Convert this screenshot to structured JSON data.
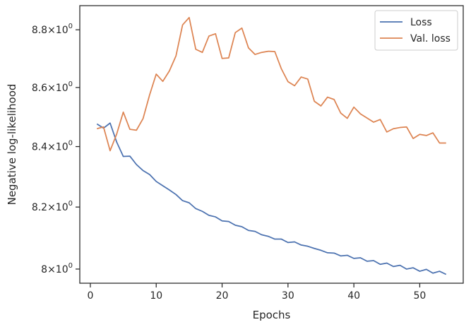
{
  "chart_data": {
    "type": "line",
    "xlabel": "Epochs",
    "ylabel": "Negative log-likelihood",
    "xlim": [
      -1.6,
      56.6
    ],
    "ylim": [
      7.955,
      8.885
    ],
    "yscale": "log",
    "x_ticks": [
      0,
      10,
      20,
      30,
      40,
      50
    ],
    "y_ticks": [
      {
        "value": 8.0,
        "base": "8",
        "exp": "0"
      },
      {
        "value": 8.2,
        "base": "8.2",
        "exp": "0"
      },
      {
        "value": 8.4,
        "base": "8.4",
        "exp": "0"
      },
      {
        "value": 8.6,
        "base": "8.6",
        "exp": "0"
      },
      {
        "value": 8.8,
        "base": "8.8",
        "exp": "0"
      }
    ],
    "tick_multiplier": "×10",
    "grid": false,
    "legend_position": "top-right",
    "x": [
      1,
      2,
      3,
      4,
      5,
      6,
      7,
      8,
      9,
      10,
      11,
      12,
      13,
      14,
      15,
      16,
      17,
      18,
      19,
      20,
      21,
      22,
      23,
      24,
      25,
      26,
      27,
      28,
      29,
      30,
      31,
      32,
      33,
      34,
      35,
      36,
      37,
      38,
      39,
      40,
      41,
      42,
      43,
      44,
      45,
      46,
      47,
      48,
      49,
      50,
      51,
      52,
      53,
      54
    ],
    "series": [
      {
        "name": "Loss",
        "color": "#4c72b0",
        "values": [
          8.476,
          8.462,
          8.479,
          8.415,
          8.367,
          8.368,
          8.34,
          8.32,
          8.307,
          8.284,
          8.27,
          8.256,
          8.241,
          8.221,
          8.214,
          8.195,
          8.186,
          8.173,
          8.168,
          8.155,
          8.153,
          8.141,
          8.136,
          8.124,
          8.121,
          8.11,
          8.105,
          8.096,
          8.096,
          8.085,
          8.087,
          8.077,
          8.073,
          8.066,
          8.06,
          8.052,
          8.051,
          8.042,
          8.044,
          8.034,
          8.036,
          8.025,
          8.027,
          8.015,
          8.019,
          8.008,
          8.012,
          8.0,
          8.004,
          7.993,
          7.999,
          7.987,
          7.993,
          7.983
        ]
      },
      {
        "name": "Val. loss",
        "color": "#dd8452",
        "values": [
          8.46,
          8.466,
          8.386,
          8.442,
          8.516,
          8.458,
          8.455,
          8.494,
          8.575,
          8.646,
          8.621,
          8.657,
          8.709,
          8.817,
          8.843,
          8.732,
          8.721,
          8.778,
          8.786,
          8.7,
          8.702,
          8.79,
          8.806,
          8.737,
          8.714,
          8.721,
          8.725,
          8.724,
          8.664,
          8.62,
          8.606,
          8.636,
          8.629,
          8.553,
          8.537,
          8.567,
          8.559,
          8.513,
          8.495,
          8.533,
          8.51,
          8.496,
          8.482,
          8.491,
          8.449,
          8.46,
          8.464,
          8.466,
          8.427,
          8.441,
          8.437,
          8.446,
          8.412,
          8.412
        ]
      }
    ]
  }
}
